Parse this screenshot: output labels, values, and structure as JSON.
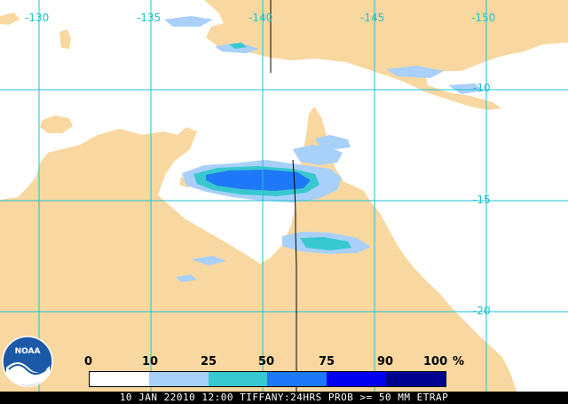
{
  "map": {
    "colors": {
      "land": "#f8d8a0",
      "ocean": "#ffffff",
      "grid": "#20c0d0",
      "border": "#000000"
    },
    "longitude_labels": [
      "-130",
      "-135",
      "-140",
      "-145",
      "-150"
    ],
    "latitude_labels": [
      "-10",
      "-15",
      "-20"
    ]
  },
  "legend": {
    "labels": [
      "0",
      "10",
      "25",
      "50",
      "75",
      "90",
      "100"
    ],
    "unit": "%",
    "colors": [
      "#ffffff",
      "#a8d0f8",
      "#38c8d0",
      "#1f78f8",
      "#0000f0",
      "#000090"
    ]
  },
  "logo": {
    "text": "NOAA",
    "icon": "noaa-logo-icon"
  },
  "footer": {
    "caption": "10 JAN 22010 12:00 TIFFANY:24HRS PROB >= 50 MM ETRAP"
  }
}
